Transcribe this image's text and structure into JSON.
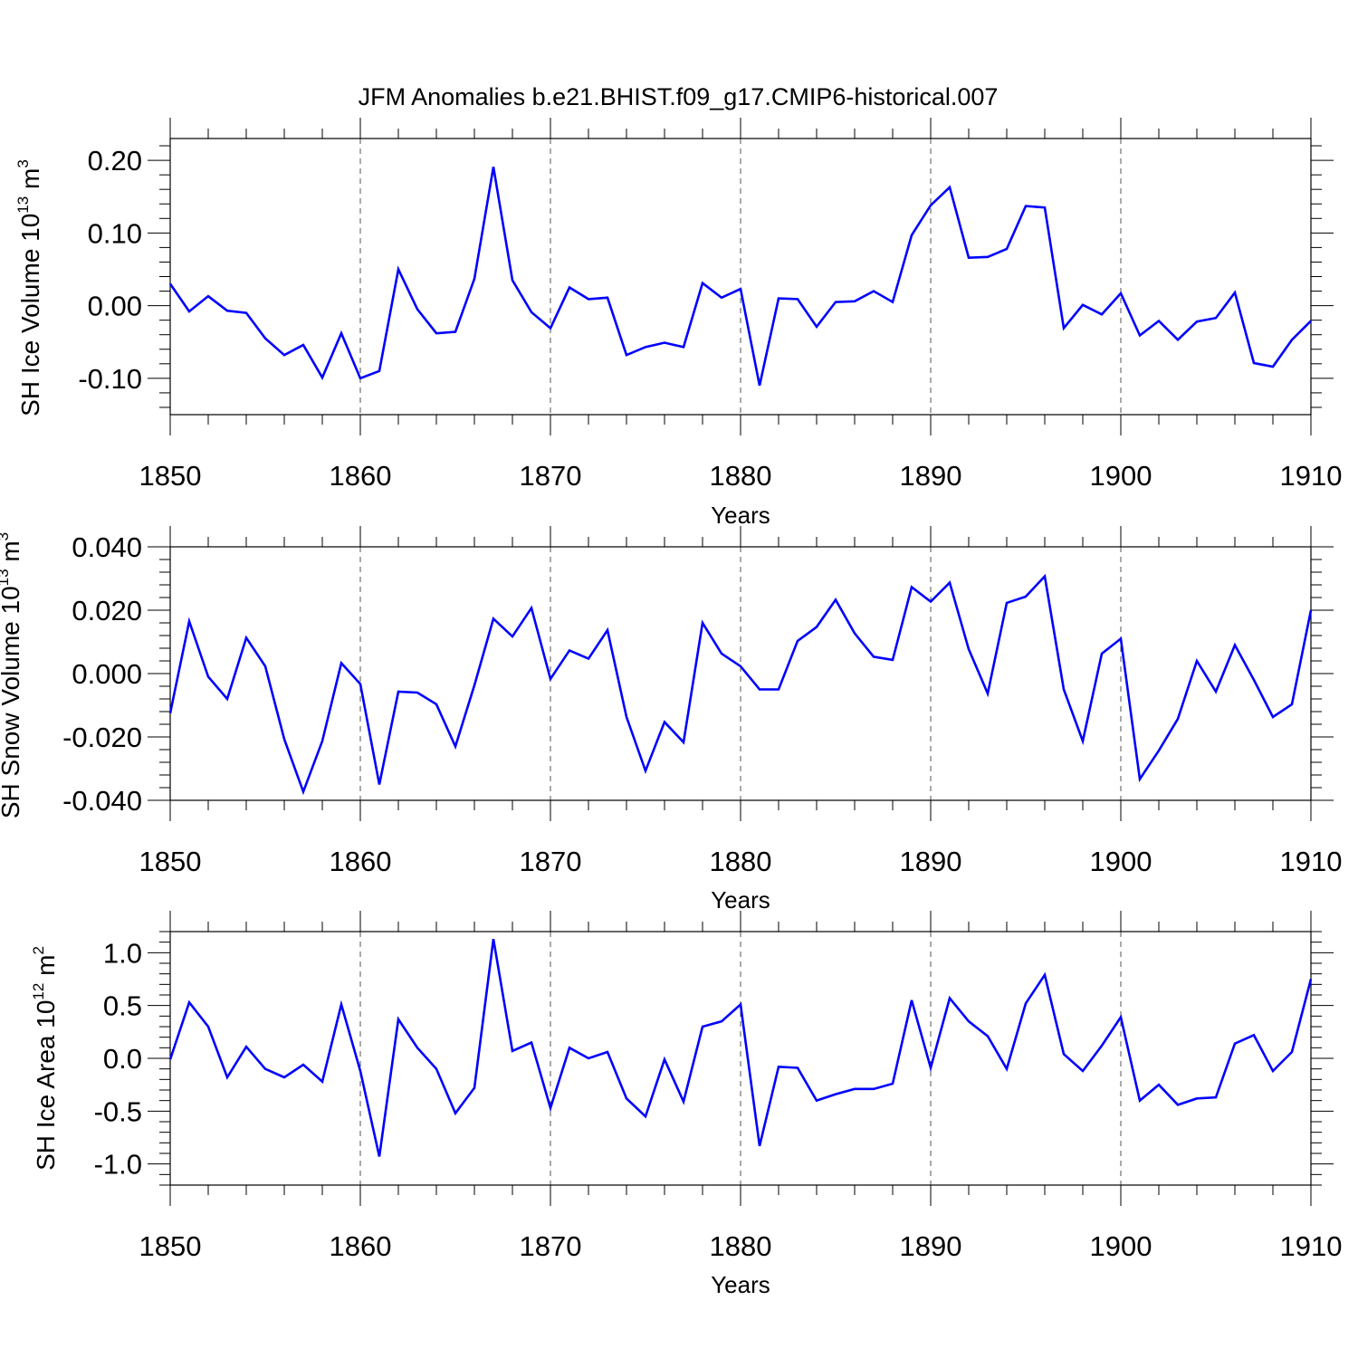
{
  "figure": {
    "title": "JFM Anomalies b.e21.BHIST.f09_g17.CMIP6-historical.007",
    "line_color": "#0000ff"
  },
  "chart_data": [
    {
      "type": "line",
      "title": "",
      "xlabel": "Years",
      "ylabel": "SH Ice Volume 10",
      "ylabel_exponent": "13",
      "ylabel_unit": "m",
      "ylabel_unit_exponent": "3",
      "xlim": [
        1850,
        1910
      ],
      "ylim": [
        -0.15,
        0.23
      ],
      "x_ticks": [
        1850,
        1860,
        1870,
        1880,
        1890,
        1900,
        1910
      ],
      "x_tick_labels": [
        "1850",
        "1860",
        "1870",
        "1880",
        "1890",
        "1900",
        "1910"
      ],
      "y_ticks": [
        0.2,
        0.1,
        0.0,
        -0.1
      ],
      "y_tick_labels": [
        "0.20",
        "0.10",
        "0.00",
        "-0.10"
      ],
      "y_minor_step": 0.02,
      "grid": "vertical dashed at major x ticks",
      "series": [
        {
          "name": "SH Ice Volume",
          "x": [
            1850,
            1851,
            1852,
            1853,
            1854,
            1855,
            1856,
            1857,
            1858,
            1859,
            1860,
            1861,
            1862,
            1863,
            1864,
            1865,
            1866,
            1867,
            1868,
            1869,
            1870,
            1871,
            1872,
            1873,
            1874,
            1875,
            1876,
            1877,
            1878,
            1879,
            1880,
            1881,
            1882,
            1883,
            1884,
            1885,
            1886,
            1887,
            1888,
            1889,
            1890,
            1891,
            1892,
            1893,
            1894,
            1895,
            1896,
            1897,
            1898,
            1899,
            1900,
            1901,
            1902,
            1903,
            1904,
            1905,
            1906,
            1907,
            1908,
            1909,
            1910
          ],
          "values": [
            0.03,
            -0.008,
            0.013,
            -0.007,
            -0.01,
            -0.045,
            -0.068,
            -0.054,
            -0.099,
            -0.038,
            -0.1,
            -0.09,
            0.05,
            -0.005,
            -0.038,
            -0.036,
            0.037,
            0.191,
            0.035,
            -0.009,
            -0.031,
            0.025,
            0.009,
            0.011,
            -0.068,
            -0.057,
            -0.051,
            -0.057,
            0.031,
            0.011,
            0.023,
            -0.11,
            0.01,
            0.009,
            -0.029,
            0.005,
            0.006,
            0.02,
            0.005,
            0.097,
            0.138,
            0.163,
            0.066,
            0.067,
            0.078,
            0.137,
            0.135,
            -0.031,
            0.001,
            -0.012,
            0.017,
            -0.041,
            -0.021,
            -0.047,
            -0.022,
            -0.017,
            0.018,
            -0.079,
            -0.084,
            -0.047,
            -0.021
          ]
        }
      ]
    },
    {
      "type": "line",
      "title": "",
      "xlabel": "Years",
      "ylabel": "SH Snow Volume 10",
      "ylabel_exponent": "13",
      "ylabel_unit": "m",
      "ylabel_unit_exponent": "3",
      "xlim": [
        1850,
        1910
      ],
      "ylim": [
        -0.04,
        0.04
      ],
      "x_ticks": [
        1850,
        1860,
        1870,
        1880,
        1890,
        1900,
        1910
      ],
      "x_tick_labels": [
        "1850",
        "1860",
        "1870",
        "1880",
        "1890",
        "1900",
        "1910"
      ],
      "y_ticks": [
        0.04,
        0.02,
        0.0,
        -0.02,
        -0.04
      ],
      "y_tick_labels": [
        "0.040",
        "0.020",
        "0.000",
        "-0.020",
        "-0.040"
      ],
      "y_minor_step": 0.004,
      "grid": "vertical dashed at major x ticks",
      "series": [
        {
          "name": "SH Snow Volume",
          "x": [
            1850,
            1851,
            1852,
            1853,
            1854,
            1855,
            1856,
            1857,
            1858,
            1859,
            1860,
            1861,
            1862,
            1863,
            1864,
            1865,
            1866,
            1867,
            1868,
            1869,
            1870,
            1871,
            1872,
            1873,
            1874,
            1875,
            1876,
            1877,
            1878,
            1879,
            1880,
            1881,
            1882,
            1883,
            1884,
            1885,
            1886,
            1887,
            1888,
            1889,
            1890,
            1891,
            1892,
            1893,
            1894,
            1895,
            1896,
            1897,
            1898,
            1899,
            1900,
            1901,
            1902,
            1903,
            1904,
            1905,
            1906,
            1907,
            1908,
            1909,
            1910
          ],
          "values": [
            -0.0125,
            0.0165,
            -0.001,
            -0.008,
            0.0113,
            0.0023,
            -0.0207,
            -0.0373,
            -0.0213,
            0.0033,
            -0.0033,
            -0.035,
            -0.0057,
            -0.006,
            -0.0097,
            -0.023,
            -0.0037,
            0.0173,
            0.0117,
            0.0207,
            -0.0017,
            0.0073,
            0.0047,
            0.0137,
            -0.0137,
            -0.0307,
            -0.0153,
            -0.0217,
            0.016,
            0.0063,
            0.0023,
            -0.005,
            -0.005,
            0.0103,
            0.0147,
            0.0233,
            0.0127,
            0.0053,
            0.0043,
            0.0273,
            0.0227,
            0.0287,
            0.0077,
            -0.0063,
            0.0223,
            0.0243,
            0.0307,
            -0.005,
            -0.0213,
            0.0063,
            0.011,
            -0.0333,
            -0.0243,
            -0.0143,
            0.004,
            -0.0057,
            0.009,
            -0.002,
            -0.0137,
            -0.0097,
            0.02
          ]
        }
      ]
    },
    {
      "type": "line",
      "title": "",
      "xlabel": "Years",
      "ylabel": "SH Ice Area 10",
      "ylabel_exponent": "12",
      "ylabel_unit": "m",
      "ylabel_unit_exponent": "2",
      "xlim": [
        1850,
        1910
      ],
      "ylim": [
        -1.2,
        1.2
      ],
      "x_ticks": [
        1850,
        1860,
        1870,
        1880,
        1890,
        1900,
        1910
      ],
      "x_tick_labels": [
        "1850",
        "1860",
        "1870",
        "1880",
        "1890",
        "1900",
        "1910"
      ],
      "y_ticks": [
        1.0,
        0.5,
        0.0,
        -0.5,
        -1.0
      ],
      "y_tick_labels": [
        "1.0",
        "0.5",
        "0.0",
        "-0.5",
        "-1.0"
      ],
      "y_minor_step": 0.1,
      "grid": "vertical dashed at major x ticks",
      "series": [
        {
          "name": "SH Ice Area",
          "x": [
            1850,
            1851,
            1852,
            1853,
            1854,
            1855,
            1856,
            1857,
            1858,
            1859,
            1860,
            1861,
            1862,
            1863,
            1864,
            1865,
            1866,
            1867,
            1868,
            1869,
            1870,
            1871,
            1872,
            1873,
            1874,
            1875,
            1876,
            1877,
            1878,
            1879,
            1880,
            1881,
            1882,
            1883,
            1884,
            1885,
            1886,
            1887,
            1888,
            1889,
            1890,
            1891,
            1892,
            1893,
            1894,
            1895,
            1896,
            1897,
            1898,
            1899,
            1900,
            1901,
            1902,
            1903,
            1904,
            1905,
            1906,
            1907,
            1908,
            1909,
            1910
          ],
          "values": [
            -0.01,
            0.53,
            0.3,
            -0.18,
            0.11,
            -0.1,
            -0.18,
            -0.06,
            -0.22,
            0.51,
            -0.12,
            -0.93,
            0.37,
            0.1,
            -0.1,
            -0.52,
            -0.28,
            1.13,
            0.07,
            0.15,
            -0.47,
            0.1,
            0.0,
            0.06,
            -0.38,
            -0.55,
            -0.01,
            -0.41,
            0.3,
            0.35,
            0.51,
            -0.83,
            -0.08,
            -0.09,
            -0.4,
            -0.34,
            -0.29,
            -0.29,
            -0.24,
            0.55,
            -0.09,
            0.57,
            0.35,
            0.21,
            -0.1,
            0.52,
            0.79,
            0.04,
            -0.12,
            0.12,
            0.39,
            -0.4,
            -0.25,
            -0.44,
            -0.38,
            -0.37,
            0.14,
            0.22,
            -0.12,
            0.06,
            0.75
          ]
        }
      ]
    }
  ]
}
